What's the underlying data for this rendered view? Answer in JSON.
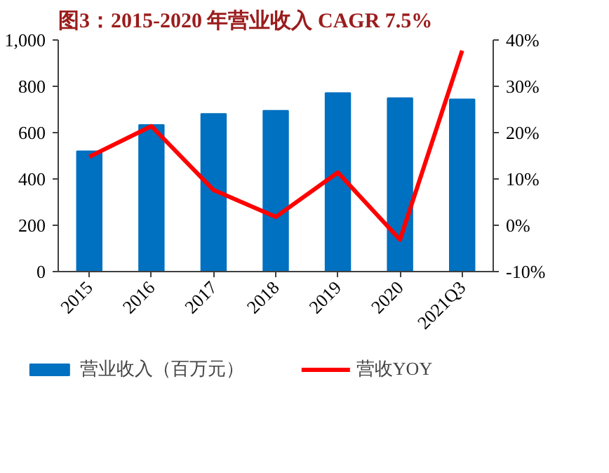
{
  "chart_data": {
    "type": "bar",
    "title": "图3：2015-2020 年营业收入 CAGR 7.5%",
    "categories": [
      "2015",
      "2016",
      "2017",
      "2018",
      "2019",
      "2020",
      "2021Q3"
    ],
    "series": [
      {
        "name": "营业收入（百万元）",
        "color": "#0070c0",
        "values": [
          520,
          633,
          681,
          695,
          771,
          749,
          744
        ]
      },
      {
        "name": "营收YOY",
        "type": "line",
        "axis": "y2",
        "color": "#ff0000",
        "values": [
          14.8,
          21.4,
          7.6,
          1.8,
          11.4,
          -3.1,
          37.7
        ]
      }
    ],
    "ylim": [
      0,
      1000
    ],
    "yticks": [
      0,
      200,
      400,
      600,
      800,
      {
        "value": 1000,
        "label": "1,000"
      }
    ],
    "y2lim": [
      -10,
      40
    ],
    "y2ticks": [
      {
        "value": -10,
        "label": "-10%"
      },
      {
        "value": 0,
        "label": "0%"
      },
      {
        "value": 10,
        "label": "10%"
      },
      {
        "value": 20,
        "label": "20%"
      },
      {
        "value": 30,
        "label": "30%"
      },
      {
        "value": 40,
        "label": "40%"
      }
    ],
    "grid": false,
    "legend": "bottom",
    "marker": "none",
    "line_style": "solid"
  }
}
